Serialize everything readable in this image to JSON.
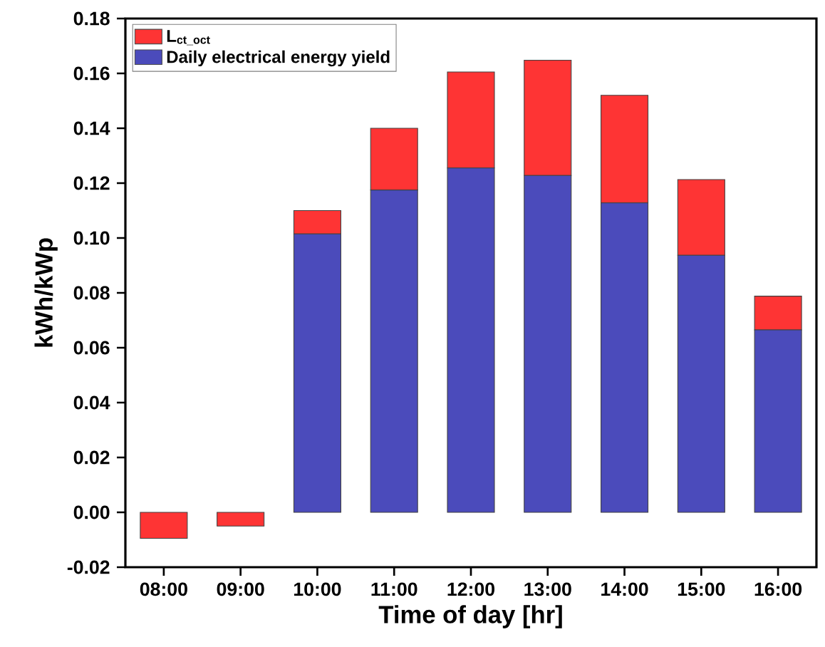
{
  "chart_data": {
    "type": "bar",
    "stacked": true,
    "xlabel": "Time of day [hr]",
    "ylabel": "kWh/kWp",
    "categories": [
      "08:00",
      "09:00",
      "10:00",
      "11:00",
      "12:00",
      "13:00",
      "14:00",
      "15:00",
      "16:00"
    ],
    "series": [
      {
        "name": "Daily electrical energy yield",
        "color": "#4b4bbb",
        "values": [
          0,
          0,
          0.1015,
          0.1175,
          0.1255,
          0.1228,
          0.1128,
          0.0937,
          0.0665
        ]
      },
      {
        "name": "L$_{ct_oct}$",
        "color": "#fe3434",
        "values": [
          -0.0095,
          -0.005,
          0.0085,
          0.0225,
          0.035,
          0.042,
          0.0392,
          0.0276,
          0.0123
        ]
      }
    ],
    "ylim": [
      -0.02,
      0.18
    ],
    "yticks": [
      {
        "value": -0.02,
        "label": "-0.02"
      },
      {
        "value": 0,
        "label": "0.00"
      },
      {
        "value": 0.02,
        "label": "0.02"
      },
      {
        "value": 0.04,
        "label": "0.04"
      },
      {
        "value": 0.06,
        "label": "0.06"
      },
      {
        "value": 0.08,
        "label": "0.08"
      },
      {
        "value": 0.1,
        "label": "0.10"
      },
      {
        "value": 0.12,
        "label": "0.12"
      },
      {
        "value": 0.14,
        "label": "0.14"
      },
      {
        "value": 0.16,
        "label": "0.16"
      },
      {
        "value": 0.18,
        "label": "0.18"
      }
    ],
    "grid": false,
    "legend": "top left"
  }
}
